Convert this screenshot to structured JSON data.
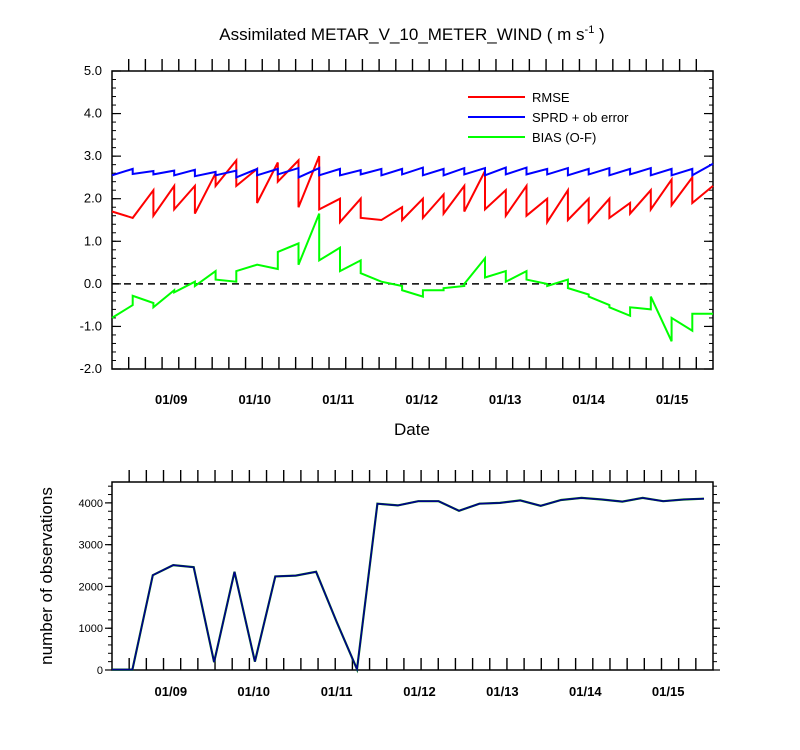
{
  "chart_data": [
    {
      "type": "line",
      "title": "Assimilated METAR_V_10_METER_WIND ( m s",
      "title_superscript": "-1",
      "title_suffix": " )",
      "xlabel": "Date",
      "ylabel": "",
      "ylim": [
        -2.0,
        5.0
      ],
      "xlim": [
        0,
        36
      ],
      "yticks": [
        "5.0",
        "4.0",
        "3.0",
        "2.0",
        "1.0",
        "0.0",
        "-1.0",
        "-2.0"
      ],
      "ytick_values": [
        5,
        4,
        3,
        2,
        1,
        0,
        -1,
        -2
      ],
      "xtick_labels": [
        "01/09",
        "01/10",
        "01/11",
        "01/12",
        "01/13",
        "01/14",
        "01/15"
      ],
      "xtick_label_positions": [
        3,
        8,
        13,
        18,
        23,
        28,
        33
      ],
      "reference_line": {
        "y": 0.0,
        "style": "dashed"
      },
      "legend_position": "top-right",
      "series": [
        {
          "name": "RMSE",
          "color": "#ff0000",
          "points": [
            [
              0,
              1.7
            ],
            [
              1,
              1.55
            ],
            [
              1,
              1.55
            ],
            [
              2,
              2.2
            ],
            [
              2,
              1.6
            ],
            [
              3,
              2.3
            ],
            [
              3,
              1.75
            ],
            [
              4,
              2.3
            ],
            [
              4,
              1.65
            ],
            [
              5,
              2.6
            ],
            [
              5,
              2.3
            ],
            [
              6,
              2.9
            ],
            [
              6,
              2.3
            ],
            [
              7,
              2.7
            ],
            [
              7,
              1.9
            ],
            [
              8,
              2.85
            ],
            [
              8,
              2.4
            ],
            [
              9,
              2.9
            ],
            [
              9,
              1.8
            ],
            [
              10,
              3.0
            ],
            [
              10,
              1.75
            ],
            [
              11,
              2.0
            ],
            [
              11,
              1.45
            ],
            [
              12,
              2.0
            ],
            [
              12,
              1.55
            ],
            [
              13,
              1.5
            ],
            [
              13,
              1.5
            ],
            [
              14,
              1.8
            ],
            [
              14,
              1.5
            ],
            [
              15,
              2.0
            ],
            [
              15,
              1.55
            ],
            [
              16,
              2.1
            ],
            [
              16,
              1.65
            ],
            [
              17,
              2.3
            ],
            [
              17,
              1.7
            ],
            [
              18,
              2.65
            ],
            [
              18,
              1.75
            ],
            [
              19,
              2.2
            ],
            [
              19,
              1.6
            ],
            [
              20,
              2.3
            ],
            [
              20,
              1.6
            ],
            [
              21,
              2.0
            ],
            [
              21,
              1.45
            ],
            [
              22,
              2.2
            ],
            [
              22,
              1.5
            ],
            [
              23,
              2.0
            ],
            [
              23,
              1.45
            ],
            [
              24,
              2.0
            ],
            [
              24,
              1.55
            ],
            [
              25,
              1.9
            ],
            [
              25,
              1.65
            ],
            [
              26,
              2.2
            ],
            [
              26,
              1.75
            ],
            [
              27,
              2.45
            ],
            [
              27,
              1.85
            ],
            [
              28,
              2.5
            ],
            [
              28,
              1.9
            ],
            [
              29,
              2.3
            ]
          ]
        },
        {
          "name": "SPRD + ob error",
          "color": "#0000ff",
          "points": [
            [
              0,
              2.55
            ],
            [
              1,
              2.7
            ],
            [
              1,
              2.58
            ],
            [
              2,
              2.65
            ],
            [
              2,
              2.57
            ],
            [
              3,
              2.66
            ],
            [
              3,
              2.55
            ],
            [
              4,
              2.68
            ],
            [
              4,
              2.53
            ],
            [
              5,
              2.63
            ],
            [
              5,
              2.55
            ],
            [
              6,
              2.66
            ],
            [
              6,
              2.5
            ],
            [
              7,
              2.7
            ],
            [
              7,
              2.55
            ],
            [
              8,
              2.7
            ],
            [
              8,
              2.57
            ],
            [
              9,
              2.72
            ],
            [
              9,
              2.5
            ],
            [
              10,
              2.72
            ],
            [
              10,
              2.55
            ],
            [
              11,
              2.7
            ],
            [
              11,
              2.55
            ],
            [
              12,
              2.67
            ],
            [
              12,
              2.57
            ],
            [
              13,
              2.7
            ],
            [
              13,
              2.55
            ],
            [
              14,
              2.7
            ],
            [
              14,
              2.57
            ],
            [
              15,
              2.73
            ],
            [
              15,
              2.55
            ],
            [
              16,
              2.7
            ],
            [
              16,
              2.55
            ],
            [
              17,
              2.72
            ],
            [
              17,
              2.57
            ],
            [
              18,
              2.72
            ],
            [
              18,
              2.55
            ],
            [
              19,
              2.73
            ],
            [
              19,
              2.57
            ],
            [
              20,
              2.73
            ],
            [
              20,
              2.57
            ],
            [
              21,
              2.7
            ],
            [
              21,
              2.57
            ],
            [
              22,
              2.72
            ],
            [
              22,
              2.55
            ],
            [
              23,
              2.7
            ],
            [
              23,
              2.57
            ],
            [
              24,
              2.72
            ],
            [
              24,
              2.55
            ],
            [
              25,
              2.7
            ],
            [
              25,
              2.57
            ],
            [
              26,
              2.72
            ],
            [
              26,
              2.55
            ],
            [
              27,
              2.7
            ],
            [
              27,
              2.55
            ],
            [
              28,
              2.7
            ],
            [
              28,
              2.55
            ],
            [
              29,
              2.82
            ]
          ]
        },
        {
          "name": "BIAS (O-F)",
          "color": "#00ff00",
          "points": [
            [
              0,
              -0.8
            ],
            [
              1,
              -0.5
            ],
            [
              1,
              -0.28
            ],
            [
              2,
              -0.45
            ],
            [
              2,
              -0.55
            ],
            [
              3,
              -0.15
            ],
            [
              3,
              -0.2
            ],
            [
              4,
              0.05
            ],
            [
              4,
              -0.05
            ],
            [
              5,
              0.3
            ],
            [
              5,
              0.1
            ],
            [
              6,
              0.05
            ],
            [
              6,
              0.3
            ],
            [
              7,
              0.45
            ],
            [
              7,
              0.45
            ],
            [
              8,
              0.35
            ],
            [
              8,
              0.75
            ],
            [
              9,
              0.95
            ],
            [
              9,
              0.45
            ],
            [
              10,
              1.65
            ],
            [
              10,
              0.55
            ],
            [
              11,
              0.85
            ],
            [
              11,
              0.3
            ],
            [
              12,
              0.55
            ],
            [
              12,
              0.25
            ],
            [
              13,
              0.05
            ],
            [
              13,
              0.05
            ],
            [
              14,
              -0.05
            ],
            [
              14,
              -0.15
            ],
            [
              15,
              -0.3
            ],
            [
              15,
              -0.15
            ],
            [
              16,
              -0.15
            ],
            [
              16,
              -0.1
            ],
            [
              17,
              -0.05
            ],
            [
              17,
              0.0
            ],
            [
              18,
              0.6
            ],
            [
              18,
              0.15
            ],
            [
              19,
              0.3
            ],
            [
              19,
              0.05
            ],
            [
              20,
              0.3
            ],
            [
              20,
              0.1
            ],
            [
              21,
              0.0
            ],
            [
              21,
              -0.05
            ],
            [
              22,
              0.1
            ],
            [
              22,
              -0.1
            ],
            [
              23,
              -0.25
            ],
            [
              23,
              -0.3
            ],
            [
              24,
              -0.5
            ],
            [
              24,
              -0.55
            ],
            [
              25,
              -0.75
            ],
            [
              25,
              -0.55
            ],
            [
              26,
              -0.6
            ],
            [
              26,
              -0.3
            ],
            [
              27,
              -1.35
            ],
            [
              27,
              -0.8
            ],
            [
              28,
              -1.1
            ],
            [
              28,
              -0.7
            ],
            [
              29,
              -0.7
            ]
          ]
        }
      ]
    },
    {
      "type": "line",
      "title": "",
      "xlabel": "",
      "ylabel": "number of observations",
      "ylim": [
        0,
        4500
      ],
      "xlim": [
        0,
        29
      ],
      "yticks": [
        "4000",
        "3000",
        "2000",
        "1000",
        "0"
      ],
      "ytick_values": [
        4000,
        3000,
        2000,
        1000,
        0
      ],
      "xtick_labels": [
        "01/09",
        "01/10",
        "01/11",
        "01/12",
        "01/13",
        "01/14",
        "01/15"
      ],
      "xtick_label_positions": [
        2.5,
        6.5,
        10.5,
        14.5,
        18.5,
        22.5,
        26.5
      ],
      "series": [
        {
          "name": "observations",
          "colors": [
            "#00008b",
            "#008000"
          ],
          "x": [
            0,
            1,
            2,
            3,
            4,
            5,
            6,
            7,
            8,
            9,
            10,
            11,
            12,
            13,
            14,
            15,
            16,
            17,
            18,
            19,
            20,
            21,
            22,
            23,
            24,
            25,
            26,
            27,
            28,
            29
          ],
          "values": [
            10,
            10,
            2270,
            2510,
            2460,
            190,
            2350,
            200,
            2240,
            2260,
            2350,
            1160,
            20,
            3980,
            3940,
            4040,
            4040,
            3810,
            3980,
            4000,
            4060,
            3930,
            4070,
            4120,
            4080,
            4030,
            4120,
            4040,
            4080,
            4100
          ]
        }
      ]
    }
  ]
}
